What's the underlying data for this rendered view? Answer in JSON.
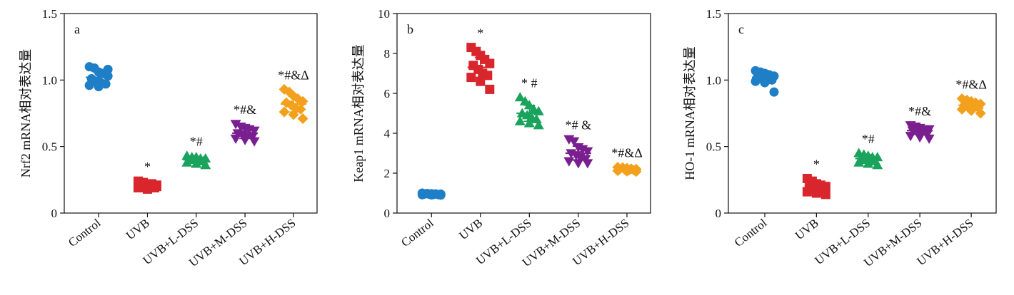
{
  "colors": {
    "Control": "#1e7fc7",
    "UVB": "#d9262c",
    "UVB+L-DSS": "#1aa35c",
    "UVB+M-DSS": "#7a1f8f",
    "UVB+H-DSS": "#f3a01d"
  },
  "chart_data": [
    {
      "type": "scatter",
      "panel_label": "a",
      "ylabel": "Nrf2  mRNA相对表达量",
      "xlabel": "",
      "ylim": [
        0,
        1.5
      ],
      "yticks": [
        0,
        0.5,
        1.0,
        1.5
      ],
      "ytick_labels": [
        "0",
        "0.5",
        "1.0",
        "1.5"
      ],
      "categories": [
        "Control",
        "UVB",
        "UVB+L-DSS",
        "UVB+M-DSS",
        "UVB+H-DSS"
      ],
      "markers": [
        "circle",
        "square",
        "triangle-up",
        "triangle-down",
        "diamond"
      ],
      "means": [
        1.02,
        0.21,
        0.4,
        0.6,
        0.82
      ],
      "sds": [
        0.05,
        0.02,
        0.02,
        0.04,
        0.06
      ],
      "points": [
        [
          1.1,
          1.09,
          1.06,
          1.05,
          1.03,
          1.01,
          0.99,
          0.98,
          0.97,
          0.96,
          0.95,
          1.08
        ],
        [
          0.24,
          0.23,
          0.22,
          0.22,
          0.21,
          0.21,
          0.2,
          0.2,
          0.19,
          0.19,
          0.18,
          0.2
        ],
        [
          0.43,
          0.42,
          0.42,
          0.41,
          0.41,
          0.4,
          0.4,
          0.39,
          0.39,
          0.38,
          0.37,
          0.36
        ],
        [
          0.67,
          0.65,
          0.64,
          0.63,
          0.62,
          0.6,
          0.59,
          0.58,
          0.57,
          0.56,
          0.55,
          0.54
        ],
        [
          0.93,
          0.91,
          0.88,
          0.86,
          0.84,
          0.83,
          0.81,
          0.79,
          0.78,
          0.76,
          0.74,
          0.71
        ]
      ],
      "annotations": [
        "",
        "*",
        "*#",
        "*#&",
        "*#&Δ"
      ]
    },
    {
      "type": "scatter",
      "panel_label": "b",
      "ylabel": "Keap1 mRNA相对表达量",
      "xlabel": "",
      "ylim": [
        0,
        10
      ],
      "yticks": [
        0,
        2,
        4,
        6,
        8,
        10
      ],
      "ytick_labels": [
        "0",
        "2",
        "4",
        "6",
        "8",
        "10"
      ],
      "categories": [
        "Control",
        "UVB",
        "UVB+L-DSS",
        "UVB+M-DSS",
        "UVB+H-DSS"
      ],
      "markers": [
        "circle",
        "square",
        "triangle-up",
        "triangle-down",
        "diamond"
      ],
      "means": [
        0.95,
        7.3,
        5.0,
        3.0,
        2.2
      ],
      "sds": [
        0.05,
        0.5,
        0.4,
        0.35,
        0.08
      ],
      "points": [
        [
          1.0,
          0.98,
          0.97,
          0.96,
          0.95,
          0.95,
          0.94,
          0.93,
          0.92,
          0.92,
          0.91,
          0.9
        ],
        [
          8.3,
          8.1,
          7.9,
          7.7,
          7.5,
          7.4,
          7.2,
          7.0,
          6.9,
          6.8,
          6.6,
          6.2
        ],
        [
          5.8,
          5.6,
          5.4,
          5.2,
          5.1,
          5.0,
          4.9,
          4.8,
          4.7,
          4.6,
          4.5,
          4.4
        ],
        [
          3.7,
          3.6,
          3.3,
          3.2,
          3.1,
          3.0,
          2.9,
          2.8,
          2.7,
          2.6,
          2.5,
          2.5
        ],
        [
          2.3,
          2.28,
          2.25,
          2.22,
          2.2,
          2.2,
          2.18,
          2.16,
          2.14,
          2.12,
          2.1,
          2.08
        ]
      ],
      "annotations": [
        "",
        "*",
        "* #",
        "*# &",
        "*#&Δ"
      ]
    },
    {
      "type": "scatter",
      "panel_label": "c",
      "ylabel": "HO-1 mRNA相对表达量",
      "xlabel": "",
      "ylim": [
        0,
        1.5
      ],
      "yticks": [
        0,
        0.5,
        1.0,
        1.5
      ],
      "ytick_labels": [
        "0",
        "0.5",
        "1.0",
        "1.5"
      ],
      "categories": [
        "Control",
        "UVB",
        "UVB+L-DSS",
        "UVB+M-DSS",
        "UVB+H-DSS"
      ],
      "markers": [
        "circle",
        "square",
        "triangle-up",
        "triangle-down",
        "diamond"
      ],
      "means": [
        1.02,
        0.19,
        0.41,
        0.62,
        0.81
      ],
      "sds": [
        0.03,
        0.03,
        0.03,
        0.03,
        0.03
      ],
      "points": [
        [
          1.07,
          1.06,
          1.05,
          1.04,
          1.03,
          1.02,
          1.01,
          1.0,
          1.0,
          0.99,
          0.98,
          0.91
        ],
        [
          0.26,
          0.24,
          0.22,
          0.21,
          0.2,
          0.19,
          0.18,
          0.18,
          0.17,
          0.16,
          0.15,
          0.14
        ],
        [
          0.45,
          0.44,
          0.43,
          0.42,
          0.42,
          0.41,
          0.4,
          0.4,
          0.39,
          0.38,
          0.37,
          0.36
        ],
        [
          0.66,
          0.65,
          0.64,
          0.63,
          0.63,
          0.62,
          0.61,
          0.6,
          0.59,
          0.58,
          0.57,
          0.56
        ],
        [
          0.86,
          0.85,
          0.84,
          0.83,
          0.82,
          0.81,
          0.8,
          0.8,
          0.79,
          0.78,
          0.77,
          0.75
        ]
      ],
      "annotations": [
        "",
        "*",
        "*#",
        "*#&",
        "*#&Δ"
      ]
    }
  ]
}
